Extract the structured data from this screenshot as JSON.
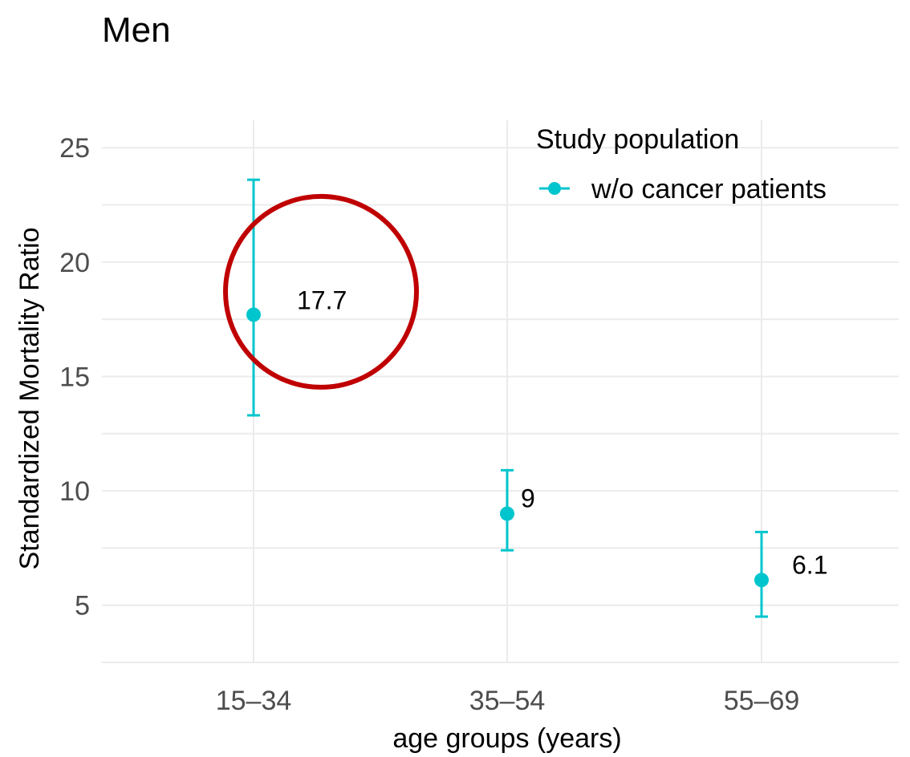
{
  "chart_data": {
    "type": "scatter",
    "title": "Men",
    "xlabel": "age groups (years)",
    "ylabel": "Standardized Mortality Ratio",
    "categories": [
      "15–34",
      "35–54",
      "55–69"
    ],
    "ylim": [
      2.5,
      26.2
    ],
    "yticks": [
      5,
      10,
      15,
      20,
      25
    ],
    "grid": true,
    "legend": {
      "title": "Study population",
      "position": "top-right",
      "entries": [
        "w/o cancer patients"
      ]
    },
    "series": [
      {
        "name": "w/o cancer patients",
        "color": "#00C5CD",
        "values": [
          17.7,
          9,
          6.1
        ],
        "lower": [
          13.3,
          7.4,
          4.5
        ],
        "upper": [
          23.6,
          10.9,
          8.2
        ],
        "labels": [
          "17.7",
          "9",
          "6.1"
        ]
      }
    ],
    "annotations": [
      {
        "type": "circle",
        "color": "#C00000",
        "category": "15–34",
        "y": 18.7
      }
    ]
  }
}
